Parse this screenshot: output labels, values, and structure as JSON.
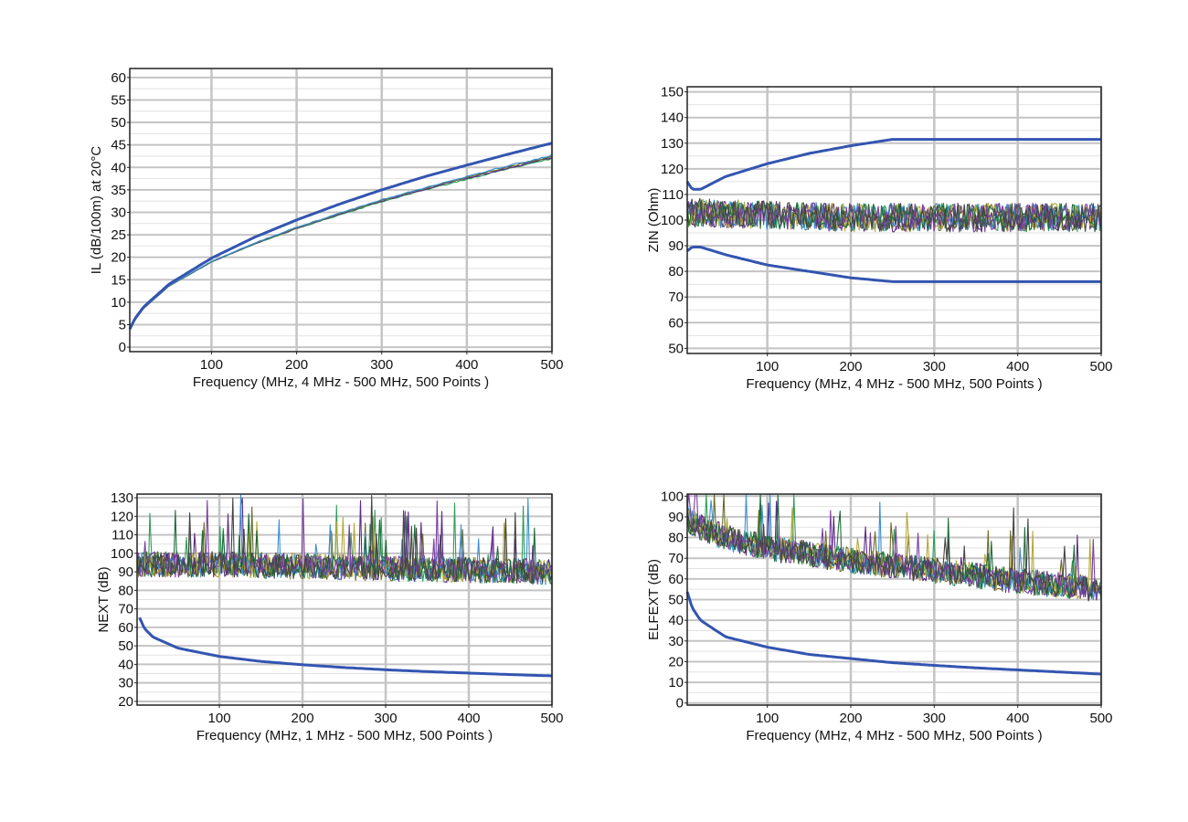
{
  "colors": {
    "limit": "#3355b0",
    "grid": "#c4c4c4",
    "minor_grid": "#e2e2e2",
    "frame": "#222222",
    "pairs": [
      "#2f9e5a",
      "#5a2a86",
      "#6b6b2a",
      "#3b8fd0",
      "#b5a83a",
      "#1f6b3a",
      "#7a3fa0",
      "#444444"
    ]
  },
  "chart_data": [
    {
      "id": "il",
      "type": "line",
      "ylabel": "IL (dB/100m) at 20°C",
      "xlabel": "Frequency (MHz, 4 MHz - 500 MHz, 500 Points )",
      "xlim": [
        4,
        500
      ],
      "ylim": [
        -1,
        62
      ],
      "xticks": [
        100,
        200,
        300,
        400,
        500
      ],
      "yticks": [
        0,
        5,
        10,
        15,
        20,
        25,
        30,
        35,
        40,
        45,
        50,
        55,
        60
      ],
      "grid": true,
      "limit_lines": [
        {
          "x": [
            4,
            10,
            20,
            50,
            100,
            150,
            200,
            250,
            300,
            350,
            400,
            450,
            500
          ],
          "y": [
            4.0,
            6.3,
            8.9,
            14.0,
            19.8,
            24.4,
            28.3,
            31.8,
            35.0,
            37.9,
            40.5,
            43.0,
            45.4
          ]
        }
      ],
      "measured": {
        "x": [
          4,
          10,
          20,
          50,
          100,
          150,
          200,
          250,
          300,
          350,
          400,
          450,
          500
        ],
        "y": [
          4.0,
          6.0,
          8.6,
          13.6,
          19.0,
          23.0,
          26.5,
          29.6,
          32.6,
          35.2,
          37.7,
          40.1,
          42.3
        ],
        "spread": 0.8
      }
    },
    {
      "id": "zin",
      "type": "line",
      "ylabel": "ZIN (Ohm)",
      "xlabel": "Frequency (MHz, 4 MHz - 500 MHz, 500 Points )",
      "xlim": [
        4,
        500
      ],
      "ylim": [
        48,
        152
      ],
      "xticks": [
        100,
        200,
        300,
        400,
        500
      ],
      "yticks": [
        50,
        60,
        70,
        80,
        90,
        100,
        110,
        120,
        130,
        140,
        150
      ],
      "grid": true,
      "limit_lines": [
        {
          "x": [
            4,
            10,
            20,
            50,
            100,
            150,
            200,
            250,
            500
          ],
          "y": [
            115,
            112,
            112,
            117,
            122,
            126,
            129,
            131.5,
            131.5
          ]
        },
        {
          "x": [
            4,
            10,
            20,
            50,
            100,
            150,
            200,
            250,
            500
          ],
          "y": [
            88,
            89.5,
            89.5,
            86.5,
            82.5,
            80,
            77.5,
            76,
            76
          ]
        }
      ],
      "measured": {
        "x": [
          4,
          100,
          200,
          300,
          400,
          500
        ],
        "y": [
          103,
          102,
          101,
          101,
          101,
          101
        ],
        "spread": 8
      }
    },
    {
      "id": "next",
      "type": "line",
      "ylabel": "NEXT (dB)",
      "xlabel": "Frequency (MHz, 1 MHz - 500 MHz, 500 Points )",
      "xlim": [
        1,
        500
      ],
      "ylim": [
        18,
        132
      ],
      "xticks": [
        100,
        200,
        300,
        400,
        500
      ],
      "yticks": [
        20,
        30,
        40,
        50,
        60,
        70,
        80,
        90,
        100,
        110,
        120,
        130
      ],
      "grid": true,
      "limit_lines": [
        {
          "x": [
            4,
            10,
            20,
            50,
            100,
            150,
            200,
            250,
            300,
            350,
            400,
            450,
            500
          ],
          "y": [
            65.3,
            59.3,
            54.8,
            48.8,
            44.3,
            41.6,
            39.8,
            38.3,
            37.1,
            36.1,
            35.3,
            34.5,
            33.8
          ]
        }
      ],
      "measured": {
        "x": [
          1,
          100,
          200,
          300,
          400,
          500
        ],
        "y": [
          94,
          94,
          93,
          92,
          91,
          90
        ],
        "spread": 10,
        "spikes": 130
      }
    },
    {
      "id": "elfext",
      "type": "line",
      "ylabel": "ELFEXT (dB)",
      "xlabel": "Frequency (MHz, 4 MHz - 500 MHz, 500 Points )",
      "xlim": [
        4,
        500
      ],
      "ylim": [
        -1,
        101
      ],
      "xticks": [
        100,
        200,
        300,
        400,
        500
      ],
      "yticks": [
        0,
        10,
        20,
        30,
        40,
        50,
        60,
        70,
        80,
        90,
        100
      ],
      "grid": true,
      "limit_lines": [
        {
          "x": [
            4,
            10,
            20,
            50,
            100,
            150,
            200,
            250,
            300,
            350,
            400,
            450,
            500
          ],
          "y": [
            53.8,
            46.0,
            40.0,
            32.0,
            27.0,
            23.5,
            21.5,
            19.5,
            18.2,
            17.0,
            16.0,
            15.0,
            14.0
          ]
        }
      ],
      "measured": {
        "x": [
          4,
          50,
          100,
          200,
          300,
          400,
          500
        ],
        "y": [
          88,
          80,
          75,
          69,
          64,
          59,
          55
        ],
        "spread": 9,
        "spikes": 101
      }
    }
  ]
}
